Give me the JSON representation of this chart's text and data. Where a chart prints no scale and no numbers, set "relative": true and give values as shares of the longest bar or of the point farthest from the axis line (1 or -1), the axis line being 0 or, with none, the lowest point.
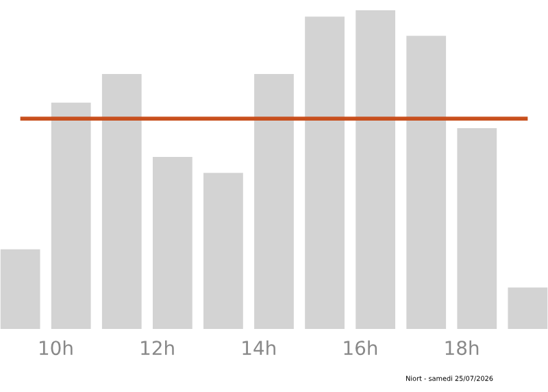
{
  "chart_data": {
    "type": "bar",
    "relative": true,
    "x": [
      9.3,
      10.3,
      11.3,
      12.3,
      13.3,
      14.3,
      15.3,
      16.3,
      17.3,
      18.3,
      19.3
    ],
    "values": [
      0.25,
      0.71,
      0.8,
      0.54,
      0.49,
      0.8,
      0.98,
      1,
      0.92,
      0.63,
      0.13
    ],
    "color": "#d3d3d3",
    "xlim": [
      8.9,
      19.7
    ],
    "xticks": [
      {
        "value": 10,
        "label": "10h"
      },
      {
        "value": 12,
        "label": "12h"
      },
      {
        "value": 14,
        "label": "14h"
      },
      {
        "value": 16,
        "label": "16h"
      },
      {
        "value": 18,
        "label": "18h"
      }
    ],
    "ref_lines": [
      {
        "axis": "y",
        "value": 0.66,
        "color": "#c8501e"
      }
    ],
    "annotations": [
      "Niort - samedi 25/07/2026"
    ]
  }
}
